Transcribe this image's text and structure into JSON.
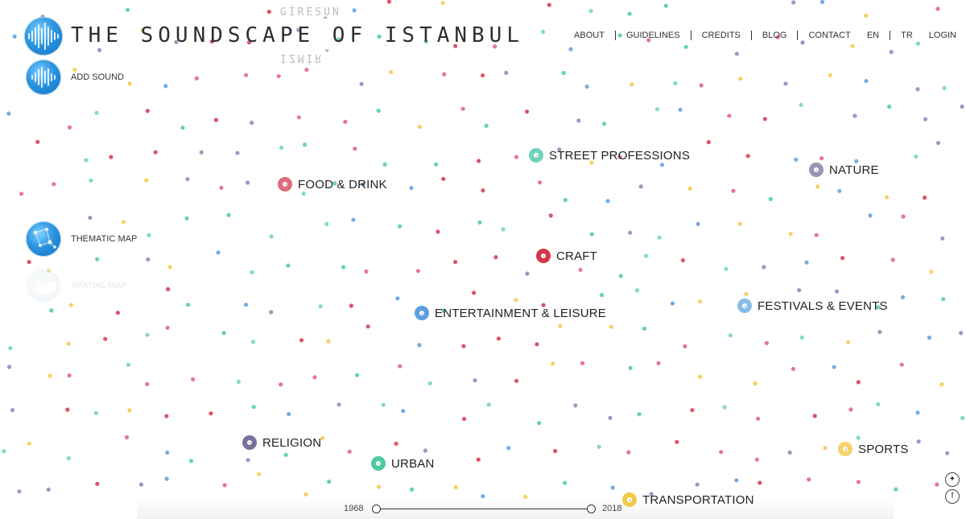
{
  "brand": {
    "title": "THE SOUNDSCAPE OF ISTANBUL",
    "city_selected": "İSTANBUL",
    "city_above": "GİRESUN",
    "city_below": "İZMİR"
  },
  "nav": [
    "ABOUT",
    "GUIDELINES",
    "CREDITS",
    "BLOG",
    "CONTACT",
    "EN",
    "TR",
    "LOGIN"
  ],
  "sidebar": {
    "add_sound": "ADD SOUND",
    "thematic_map": "THEMATIC MAP",
    "spatial_map": "SPATIAL MAP"
  },
  "categories": [
    {
      "name": "STREET PROFESSIONS",
      "color": "#6fd3bc"
    },
    {
      "name": "NATURE",
      "color": "#9a93b8"
    },
    {
      "name": "FOOD & DRINK",
      "color": "#e06b7a"
    },
    {
      "name": "CRAFT",
      "color": "#d6364c"
    },
    {
      "name": "ENTERTAINMENT & LEISURE",
      "color": "#5aa0e0"
    },
    {
      "name": "FESTIVALS & EVENTS",
      "color": "#86bde8"
    },
    {
      "name": "RELIGION",
      "color": "#77729c"
    },
    {
      "name": "URBAN",
      "color": "#4cc9a3"
    },
    {
      "name": "SPORTS",
      "color": "#f5d46a"
    },
    {
      "name": "TRANSPORTATION",
      "color": "#f3c94a"
    }
  ],
  "timeline": {
    "start_year": "1968",
    "end_year": "2018"
  },
  "social": {
    "twitter": "twitter-icon",
    "facebook": "facebook-icon"
  },
  "dot_colors": [
    "#e0627a",
    "#6fd3bc",
    "#5aa0e0",
    "#f3c94a",
    "#8c86b6",
    "#4cc9a3",
    "#d6364c"
  ]
}
